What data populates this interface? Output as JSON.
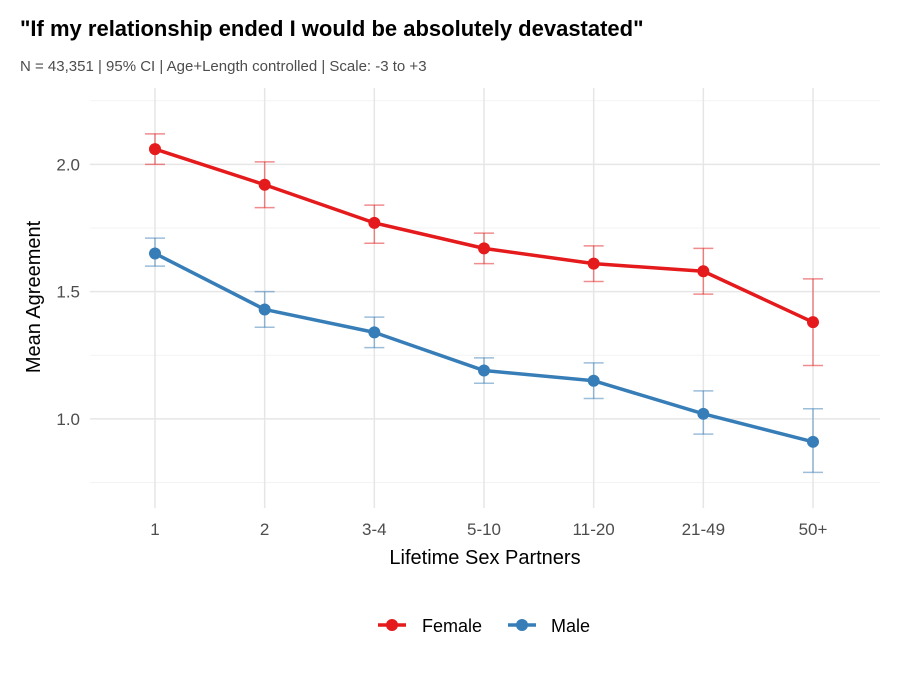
{
  "chart_data": {
    "type": "line",
    "title": "\"If my relationship ended I would be absolutely devastated\"",
    "subtitle": "N = 43,351 | 95% CI | Age+Length controlled | Scale: -3 to +3",
    "xlabel": "Lifetime Sex Partners",
    "ylabel": "Mean Agreement",
    "categories": [
      "1",
      "2",
      "3-4",
      "5-10",
      "11-20",
      "21-49",
      "50+"
    ],
    "ylim": [
      0.65,
      2.3
    ],
    "yticks": [
      1.0,
      1.5,
      2.0
    ],
    "ytick_labels": [
      "1.0",
      "1.5",
      "2.0"
    ],
    "grid": true,
    "legend_position": "bottom",
    "series": [
      {
        "name": "Female",
        "color": "#e41a1c",
        "values": [
          2.06,
          1.92,
          1.77,
          1.67,
          1.61,
          1.58,
          1.38
        ],
        "ci_low": [
          2.0,
          1.83,
          1.69,
          1.61,
          1.54,
          1.49,
          1.21
        ],
        "ci_high": [
          2.12,
          2.01,
          1.84,
          1.73,
          1.68,
          1.67,
          1.55
        ]
      },
      {
        "name": "Male",
        "color": "#377eb8",
        "values": [
          1.65,
          1.43,
          1.34,
          1.19,
          1.15,
          1.02,
          0.91
        ],
        "ci_low": [
          1.6,
          1.36,
          1.28,
          1.14,
          1.08,
          0.94,
          0.79
        ],
        "ci_high": [
          1.71,
          1.5,
          1.4,
          1.24,
          1.22,
          1.11,
          1.04
        ]
      }
    ]
  }
}
